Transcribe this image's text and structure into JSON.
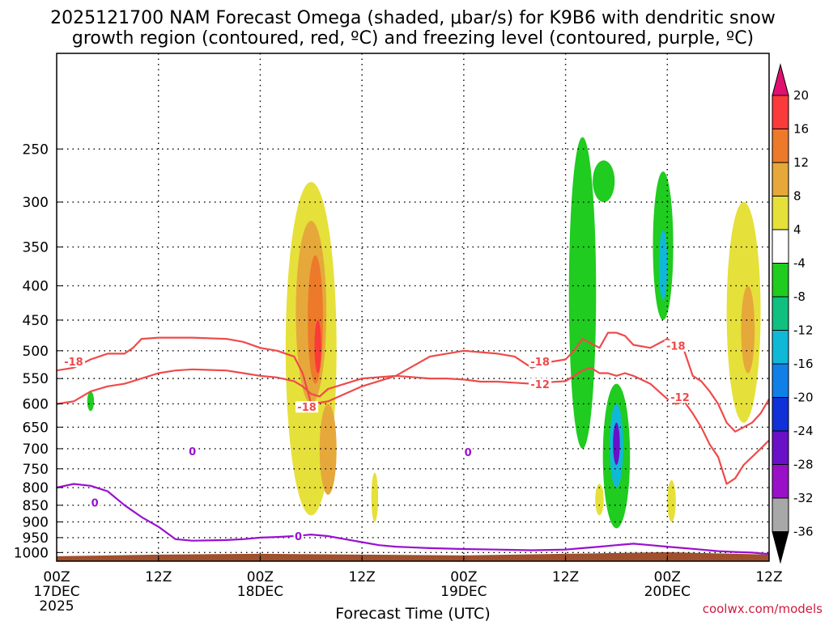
{
  "chart_data": {
    "type": "time-height cross section",
    "title_line1": "2025121700 NAM Forecast Omega (shaded, μbar/s) for K9B6 with dendritic snow",
    "title_line2": "growth region (contoured, red, ºC) and freezing level (contoured, purple, ºC)",
    "xlabel": "Forecast Time (UTC)",
    "credit": "coolwx.com/models",
    "x_ticks": [
      {
        "hour": 0,
        "label": "00Z",
        "sub1": "17DEC",
        "sub2": "2025"
      },
      {
        "hour": 12,
        "label": "12Z",
        "sub1": "",
        "sub2": ""
      },
      {
        "hour": 24,
        "label": "00Z",
        "sub1": "18DEC",
        "sub2": ""
      },
      {
        "hour": 36,
        "label": "12Z",
        "sub1": "",
        "sub2": ""
      },
      {
        "hour": 48,
        "label": "00Z",
        "sub1": "19DEC",
        "sub2": ""
      },
      {
        "hour": 60,
        "label": "12Z",
        "sub1": "",
        "sub2": ""
      },
      {
        "hour": 72,
        "label": "00Z",
        "sub1": "20DEC",
        "sub2": ""
      },
      {
        "hour": 84,
        "label": "12Z",
        "sub1": "",
        "sub2": ""
      }
    ],
    "x_range_hours": [
      0,
      84
    ],
    "y_range_mb": [
      1030,
      180
    ],
    "y_ticks": [
      250,
      300,
      350,
      400,
      450,
      500,
      550,
      600,
      650,
      700,
      750,
      800,
      850,
      900,
      950,
      1000
    ],
    "colorbar_ticks": [
      20,
      16,
      12,
      8,
      4,
      -4,
      -8,
      -12,
      -16,
      -20,
      -24,
      -28,
      -32,
      -36
    ],
    "colorbar_colors": [
      "#e0116e",
      "#fb3a3a",
      "#ec7a2a",
      "#e6a83a",
      "#e6e03a",
      "#ffffff",
      "#1fcc1f",
      "#10c080",
      "#10b8d8",
      "#1080e8",
      "#1030d8",
      "#6a10c8",
      "#9a10c8",
      "#a8a8a8",
      "#000000"
    ],
    "omega_features": [
      {
        "hour": 4,
        "p_top": 575,
        "p_bot": 615,
        "half_width_h": 0.4,
        "omega": -6
      },
      {
        "hour": 29,
        "p_top": 600,
        "p_bot": 615,
        "half_width_h": 0.2,
        "omega": -6
      },
      {
        "hour": 30,
        "p_top": 280,
        "p_bot": 880,
        "half_width_h": 3.0,
        "omega": 6
      },
      {
        "hour": 30,
        "p_top": 320,
        "p_bot": 600,
        "half_width_h": 1.8,
        "omega": 10
      },
      {
        "hour": 30.5,
        "p_top": 360,
        "p_bot": 560,
        "half_width_h": 0.9,
        "omega": 14
      },
      {
        "hour": 30.8,
        "p_top": 450,
        "p_bot": 540,
        "half_width_h": 0.4,
        "omega": 18
      },
      {
        "hour": 32,
        "p_top": 600,
        "p_bot": 820,
        "half_width_h": 1.0,
        "omega": 12
      },
      {
        "hour": 37.5,
        "p_top": 760,
        "p_bot": 900,
        "half_width_h": 0.4,
        "omega": 6
      },
      {
        "hour": 62,
        "p_top": 240,
        "p_bot": 700,
        "half_width_h": 1.6,
        "omega": -6
      },
      {
        "hour": 64.5,
        "p_top": 260,
        "p_bot": 300,
        "half_width_h": 1.3,
        "omega": -6
      },
      {
        "hour": 66,
        "p_top": 560,
        "p_bot": 920,
        "half_width_h": 1.6,
        "omega": -6
      },
      {
        "hour": 66,
        "p_top": 600,
        "p_bot": 800,
        "half_width_h": 0.8,
        "omega": -14
      },
      {
        "hour": 66,
        "p_top": 640,
        "p_bot": 740,
        "half_width_h": 0.4,
        "omega": -24
      },
      {
        "hour": 64,
        "p_top": 790,
        "p_bot": 880,
        "half_width_h": 0.5,
        "omega": 8
      },
      {
        "hour": 71.5,
        "p_top": 270,
        "p_bot": 450,
        "half_width_h": 1.2,
        "omega": -6
      },
      {
        "hour": 71.5,
        "p_top": 330,
        "p_bot": 420,
        "half_width_h": 0.5,
        "omega": -12
      },
      {
        "hour": 72.5,
        "p_top": 780,
        "p_bot": 900,
        "half_width_h": 0.5,
        "omega": 6
      },
      {
        "hour": 81,
        "p_top": 300,
        "p_bot": 640,
        "half_width_h": 2.0,
        "omega": 6
      },
      {
        "hour": 81.5,
        "p_top": 400,
        "p_bot": 540,
        "half_width_h": 0.8,
        "omega": 9
      }
    ],
    "contours": [
      {
        "name": "red -18",
        "value": -18,
        "color": "#ef4a4a",
        "points": [
          [
            0,
            535
          ],
          [
            2,
            530
          ],
          [
            4,
            515
          ],
          [
            6,
            505
          ],
          [
            8,
            505
          ],
          [
            9,
            495
          ],
          [
            10,
            480
          ],
          [
            12,
            478
          ],
          [
            16,
            478
          ],
          [
            20,
            480
          ],
          [
            22,
            485
          ],
          [
            24,
            495
          ],
          [
            26,
            500
          ],
          [
            28,
            510
          ],
          [
            29,
            540
          ],
          [
            30,
            600
          ],
          [
            32,
            595
          ],
          [
            36,
            565
          ],
          [
            40,
            545
          ],
          [
            44,
            510
          ],
          [
            48,
            500
          ],
          [
            52,
            505
          ],
          [
            54,
            510
          ],
          [
            56,
            530
          ],
          [
            58,
            520
          ],
          [
            60,
            515
          ],
          [
            61,
            500
          ],
          [
            62,
            480
          ],
          [
            64,
            495
          ],
          [
            65,
            470
          ],
          [
            66,
            470
          ],
          [
            67,
            475
          ],
          [
            68,
            490
          ],
          [
            70,
            495
          ],
          [
            72,
            480
          ],
          [
            73,
            490
          ],
          [
            74,
            500
          ],
          [
            75,
            545
          ],
          [
            76,
            555
          ],
          [
            77,
            575
          ],
          [
            78,
            600
          ],
          [
            79,
            640
          ],
          [
            80,
            660
          ],
          [
            81,
            650
          ],
          [
            82,
            640
          ],
          [
            83,
            620
          ],
          [
            84,
            590
          ]
        ]
      },
      {
        "name": "red -12",
        "value": -12,
        "color": "#ef4a4a",
        "points": [
          [
            0,
            600
          ],
          [
            2,
            595
          ],
          [
            4,
            575
          ],
          [
            6,
            565
          ],
          [
            8,
            560
          ],
          [
            10,
            550
          ],
          [
            12,
            540
          ],
          [
            14,
            535
          ],
          [
            16,
            533
          ],
          [
            20,
            535
          ],
          [
            22,
            540
          ],
          [
            24,
            545
          ],
          [
            26,
            548
          ],
          [
            28,
            555
          ],
          [
            29,
            565
          ],
          [
            30,
            580
          ],
          [
            31,
            585
          ],
          [
            32,
            570
          ],
          [
            34,
            560
          ],
          [
            36,
            550
          ],
          [
            40,
            545
          ],
          [
            44,
            550
          ],
          [
            46,
            550
          ],
          [
            48,
            552
          ],
          [
            50,
            556
          ],
          [
            52,
            556
          ],
          [
            54,
            558
          ],
          [
            56,
            560
          ],
          [
            58,
            557
          ],
          [
            60,
            555
          ],
          [
            61,
            545
          ],
          [
            62,
            535
          ],
          [
            63,
            530
          ],
          [
            64,
            540
          ],
          [
            65,
            540
          ],
          [
            66,
            545
          ],
          [
            67,
            540
          ],
          [
            68,
            545
          ],
          [
            70,
            560
          ],
          [
            71,
            575
          ],
          [
            72,
            590
          ],
          [
            73,
            600
          ],
          [
            74,
            595
          ],
          [
            75,
            620
          ],
          [
            76,
            650
          ],
          [
            77,
            690
          ],
          [
            78,
            720
          ],
          [
            79,
            790
          ],
          [
            80,
            775
          ],
          [
            81,
            740
          ],
          [
            82,
            720
          ],
          [
            83,
            700
          ],
          [
            84,
            680
          ]
        ]
      },
      {
        "name": "purple 0",
        "value": 0,
        "color": "#9a10d0",
        "points": [
          [
            0,
            800
          ],
          [
            2,
            790
          ],
          [
            4,
            795
          ],
          [
            6,
            810
          ],
          [
            8,
            850
          ],
          [
            10,
            885
          ],
          [
            12,
            915
          ],
          [
            14,
            955
          ],
          [
            16,
            960
          ],
          [
            20,
            958
          ],
          [
            22,
            955
          ],
          [
            24,
            950
          ],
          [
            26,
            948
          ],
          [
            28,
            945
          ],
          [
            30,
            940
          ],
          [
            32,
            945
          ],
          [
            34,
            955
          ],
          [
            36,
            965
          ],
          [
            38,
            975
          ],
          [
            40,
            980
          ],
          [
            44,
            985
          ],
          [
            48,
            988
          ],
          [
            52,
            990
          ],
          [
            56,
            992
          ],
          [
            60,
            990
          ],
          [
            62,
            985
          ],
          [
            64,
            980
          ],
          [
            66,
            975
          ],
          [
            68,
            970
          ],
          [
            70,
            975
          ],
          [
            72,
            980
          ],
          [
            74,
            985
          ],
          [
            76,
            990
          ],
          [
            78,
            995
          ],
          [
            80,
            998
          ],
          [
            82,
            1000
          ],
          [
            84,
            1005
          ]
        ]
      }
    ],
    "contour_labels": [
      {
        "text": "-18",
        "kind": "red",
        "hour": 2,
        "p": 520
      },
      {
        "text": "-18",
        "kind": "red",
        "hour": 29.5,
        "p": 608
      },
      {
        "text": "-18",
        "kind": "red",
        "hour": 57,
        "p": 520
      },
      {
        "text": "-12",
        "kind": "red",
        "hour": 57,
        "p": 562
      },
      {
        "text": "-18",
        "kind": "red",
        "hour": 73,
        "p": 493
      },
      {
        "text": "-12",
        "kind": "red",
        "hour": 73.5,
        "p": 588
      },
      {
        "text": "0",
        "kind": "purple",
        "hour": 16,
        "p": 708
      },
      {
        "text": "0",
        "kind": "purple",
        "hour": 4.5,
        "p": 845
      },
      {
        "text": "0",
        "kind": "purple",
        "hour": 28.5,
        "p": 948
      },
      {
        "text": "0",
        "kind": "purple",
        "hour": 48.5,
        "p": 710
      }
    ]
  }
}
